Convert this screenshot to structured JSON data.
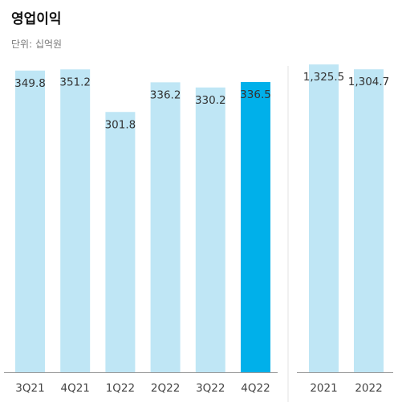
{
  "header": {
    "title": "영업이익",
    "unit": "단위: 십억원"
  },
  "chart_data": [
    {
      "type": "bar",
      "title": "영업이익",
      "subtitle": "단위: 십억원",
      "categories": [
        "3Q21",
        "4Q21",
        "1Q22",
        "2Q22",
        "3Q22",
        "4Q22"
      ],
      "values": [
        349.8,
        351.2,
        301.8,
        336.2,
        330.2,
        336.5
      ],
      "value_labels": [
        "349.8",
        "351.2",
        "301.8",
        "336.2",
        "330.2",
        "336.5"
      ],
      "highlight_index": 5,
      "ylim": [
        0,
        385
      ]
    },
    {
      "type": "bar",
      "categories": [
        "2021",
        "2022"
      ],
      "values": [
        1325.5,
        1304.7
      ],
      "value_labels": [
        "1,325.5",
        "1,304.7"
      ],
      "ylim": [
        0,
        1430
      ]
    }
  ],
  "colors": {
    "bar": "#bfe6f5",
    "highlight": "#00b0ea",
    "axis": "#999999",
    "divider": "#e3e3e3"
  }
}
